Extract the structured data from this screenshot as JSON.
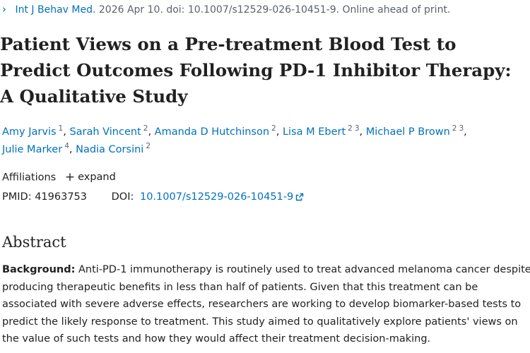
{
  "citation": {
    "journal": "Int J Behav Med.",
    "details": "2026 Apr 10. doi: 10.1007/s12529-026-10451-9. Online ahead of print."
  },
  "title_lines": [
    "Patient Views on a Pre-treatment Blood Test to",
    "Predict Outcomes Following PD-1 Inhibitor Therapy:",
    "A Qualitative Study"
  ],
  "authors": [
    {
      "name": "Amy Jarvis",
      "affils": [
        "1"
      ]
    },
    {
      "name": "Sarah Vincent",
      "affils": [
        "2"
      ]
    },
    {
      "name": "Amanda D Hutchinson",
      "affils": [
        "2"
      ]
    },
    {
      "name": "Lisa M Ebert",
      "affils": [
        "2",
        "3"
      ]
    },
    {
      "name": "Michael P Brown",
      "affils": [
        "2",
        "3"
      ]
    },
    {
      "name": "Julie Marker",
      "affils": [
        "4"
      ]
    },
    {
      "name": "Nadia Corsini",
      "affils": [
        "2"
      ]
    }
  ],
  "affiliations": {
    "label": "Affiliations",
    "expand_label": "expand"
  },
  "ids": {
    "pmid_label": "PMID:",
    "pmid": "41963753",
    "doi_label": "DOI:",
    "doi": "10.1007/s12529-026-10451-9"
  },
  "abstract": {
    "heading": "Abstract",
    "background_label": "Background:",
    "lines": [
      " Anti-PD-1 immunotherapy is routinely used to treat advanced melanoma cancer despite",
      "producing therapeutic benefits in less than half of patients. Given that this treatment can be",
      "associated with severe adverse effects, researchers are working to develop biomarker-based tests to",
      "predict the likely response to treatment. This study aimed to qualitatively explore patients' views on",
      "the value of such tests and how they would affect their treatment decision-making."
    ]
  }
}
